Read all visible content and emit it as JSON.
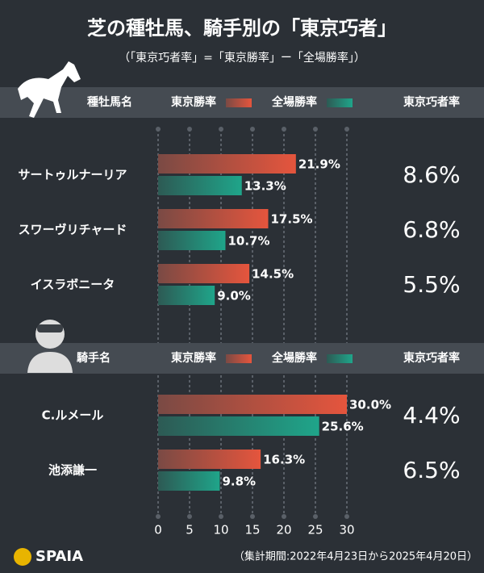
{
  "title": "芝の種牡馬、騎手別の「東京巧者」",
  "subtitle": "（「東京巧者率」=「東京勝率」ー「全場勝率」）",
  "chart_data": [
    {
      "type": "bar",
      "orientation": "horizontal",
      "category_header": "種牡馬名",
      "categories": [
        "サートゥルナーリア",
        "スワーヴリチャード",
        "イスラボニータ"
      ],
      "series": [
        {
          "name": "東京勝率",
          "color": "#e5553d",
          "values": [
            21.9,
            17.5,
            14.5
          ],
          "value_labels": [
            "21.9%",
            "17.5%",
            "14.5%"
          ]
        },
        {
          "name": "全場勝率",
          "color": "#1fa58a",
          "values": [
            13.3,
            10.7,
            9.0
          ],
          "value_labels": [
            "13.3%",
            "10.7%",
            "9.0%"
          ]
        }
      ],
      "extra_column": {
        "name": "東京巧者率",
        "values": [
          8.6,
          6.8,
          5.5
        ],
        "value_labels": [
          "8.6%",
          "6.8%",
          "5.5%"
        ]
      },
      "xlim": [
        0,
        30
      ],
      "xticks": [
        0,
        5,
        10,
        15,
        20,
        25,
        30
      ],
      "grid": true
    },
    {
      "type": "bar",
      "orientation": "horizontal",
      "category_header": "騎手名",
      "categories": [
        "C.ルメール",
        "池添謙一"
      ],
      "series": [
        {
          "name": "東京勝率",
          "color": "#e5553d",
          "values": [
            30.0,
            16.3
          ],
          "value_labels": [
            "30.0%",
            "16.3%"
          ]
        },
        {
          "name": "全場勝率",
          "color": "#1fa58a",
          "values": [
            25.6,
            9.8
          ],
          "value_labels": [
            "25.6%",
            "9.8%"
          ]
        }
      ],
      "extra_column": {
        "name": "東京巧者率",
        "values": [
          4.4,
          6.5
        ],
        "value_labels": [
          "4.4%",
          "6.5%"
        ]
      },
      "xlim": [
        0,
        30
      ],
      "xticks": [
        0,
        5,
        10,
        15,
        20,
        25,
        30
      ],
      "grid": true
    }
  ],
  "footer": {
    "brand": "SPAIA",
    "note": "（集計期間:2022年4月23日から2025年4月20日）"
  }
}
